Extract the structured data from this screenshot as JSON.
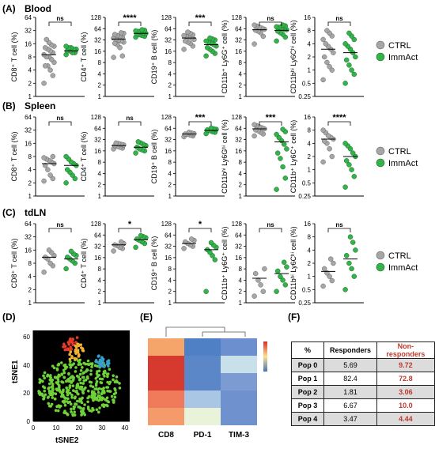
{
  "panel_labels": {
    "A": "(A)",
    "B": "(B)",
    "C": "(C)",
    "D": "(D)",
    "E": "(E)",
    "F": "(F)"
  },
  "row_titles": {
    "A": "Blood",
    "B": "Spleen",
    "C": "tdLN"
  },
  "legend": {
    "ctrl": "CTRL",
    "immact": "ImmAct"
  },
  "colors": {
    "ctrl": "#a6a6a6",
    "immact": "#33b34a",
    "sig_line": "#000000"
  },
  "chart_data": [
    {
      "type": "scatter",
      "row": "Blood",
      "ylabel": "CD8⁺ T cell (%)",
      "ticks": [
        "1",
        "2",
        "4",
        "8",
        "16",
        "32",
        "64"
      ],
      "ylim": [
        1,
        64
      ],
      "sig": "ns",
      "ctrl": {
        "mean": 9,
        "values": [
          2,
          3,
          4,
          5,
          5,
          6,
          7,
          8,
          8,
          9,
          10,
          11,
          12,
          13,
          14,
          15,
          17,
          20
        ]
      },
      "immact": {
        "mean": 11,
        "values": [
          9,
          10,
          10,
          11,
          11,
          12,
          12,
          13,
          13,
          14
        ]
      }
    },
    {
      "type": "scatter",
      "row": "Blood",
      "ylabel": "CD4⁺ T cell (%)",
      "ticks": [
        "1",
        "2",
        "4",
        "8",
        "16",
        "32",
        "64",
        "128"
      ],
      "ylim": [
        1,
        128
      ],
      "sig": "****",
      "ctrl": {
        "mean": 34,
        "values": [
          11,
          12,
          20,
          24,
          26,
          28,
          30,
          32,
          34,
          36,
          38,
          40,
          42,
          45,
          48,
          50
        ]
      },
      "immact": {
        "mean": 48,
        "values": [
          38,
          40,
          42,
          44,
          46,
          48,
          50,
          52,
          54,
          56,
          58,
          60
        ]
      }
    },
    {
      "type": "scatter",
      "row": "Blood",
      "ylabel": "CD19⁺ B cell (%)",
      "ticks": [
        "1",
        "2",
        "4",
        "8",
        "16",
        "32",
        "64",
        "128"
      ],
      "ylim": [
        1,
        128
      ],
      "sig": "***",
      "ctrl": {
        "mean": 36,
        "values": [
          18,
          22,
          26,
          28,
          30,
          33,
          36,
          38,
          40,
          42,
          44,
          48,
          52
        ]
      },
      "immact": {
        "mean": 24,
        "values": [
          12,
          14,
          16,
          18,
          20,
          22,
          24,
          26,
          28,
          30,
          32,
          34,
          36
        ]
      }
    },
    {
      "type": "scatter",
      "row": "Blood",
      "ylabel": "CD11b⁺ Ly6G⁺ cell (%)",
      "ticks": [
        "1",
        "2",
        "4",
        "8",
        "16",
        "32",
        "64",
        "128"
      ],
      "ylim": [
        1,
        128
      ],
      "sig": "ns",
      "ctrl": {
        "mean": 60,
        "values": [
          25,
          40,
          50,
          55,
          58,
          62,
          66,
          70,
          75,
          80
        ]
      },
      "immact": {
        "mean": 58,
        "values": [
          30,
          38,
          45,
          50,
          55,
          60,
          62,
          65,
          70,
          72,
          76,
          80
        ]
      }
    },
    {
      "type": "scatter",
      "row": "Blood",
      "ylabel": "CD11bʰⁱ Ly6Cʰⁱ cell (%)",
      "ticks": [
        "0.25",
        "0.5",
        "1",
        "2",
        "4",
        "8",
        "16"
      ],
      "ylim": [
        0.25,
        16
      ],
      "sig": "ns",
      "ctrl": {
        "mean": 3,
        "values": [
          0.6,
          1,
          1.2,
          1.5,
          2,
          2.5,
          3,
          3.5,
          4,
          5,
          6,
          7,
          8
        ]
      },
      "immact": {
        "mean": 2.5,
        "values": [
          0.5,
          0.8,
          1,
          1.3,
          1.7,
          2,
          2.5,
          3,
          3.5,
          4,
          5,
          6,
          7
        ]
      }
    },
    {
      "type": "scatter",
      "row": "Spleen",
      "ylabel": "CD8⁺ T cell (%)",
      "ticks": [
        "1",
        "2",
        "4",
        "8",
        "16",
        "32",
        "64"
      ],
      "ylim": [
        1,
        64
      ],
      "sig": "ns",
      "ctrl": {
        "mean": 5.5,
        "values": [
          2.2,
          2.5,
          3,
          4,
          5,
          5.5,
          6,
          6.5,
          7,
          7.5,
          8
        ]
      },
      "immact": {
        "mean": 5,
        "values": [
          2,
          2.5,
          3,
          3.5,
          4,
          5,
          5.5,
          6,
          7,
          8
        ]
      }
    },
    {
      "type": "scatter",
      "row": "Spleen",
      "ylabel": "CD4⁺ T cell (%)",
      "ticks": [
        "1",
        "2",
        "4",
        "8",
        "16",
        "32",
        "64",
        "128"
      ],
      "ylim": [
        1,
        128
      ],
      "sig": "ns",
      "ctrl": {
        "mean": 22,
        "values": [
          18,
          19,
          20,
          21,
          22,
          23,
          24,
          25,
          26
        ]
      },
      "immact": {
        "mean": 20,
        "values": [
          14,
          16,
          17,
          18,
          20,
          22,
          24,
          26,
          28
        ]
      }
    },
    {
      "type": "scatter",
      "row": "Spleen",
      "ylabel": "CD19⁺ B cell (%)",
      "ticks": [
        "1",
        "2",
        "4",
        "8",
        "16",
        "32",
        "64",
        "128"
      ],
      "ylim": [
        1,
        128
      ],
      "sig": "***",
      "ctrl": {
        "mean": 45,
        "values": [
          38,
          40,
          42,
          44,
          45,
          46,
          48,
          50
        ]
      },
      "immact": {
        "mean": 56,
        "values": [
          46,
          50,
          52,
          55,
          58,
          60,
          62,
          65
        ]
      }
    },
    {
      "type": "scatter",
      "row": "Spleen",
      "ylabel": "CD11bʰⁱ Ly6Gʰⁱ cell (%)",
      "ticks": [
        "1",
        "2",
        "4",
        "8",
        "16",
        "32",
        "64",
        "128"
      ],
      "ylim": [
        1,
        128
      ],
      "sig": "***",
      "ctrl": {
        "mean": 62,
        "values": [
          40,
          45,
          50,
          55,
          58,
          62,
          66,
          70,
          75,
          80
        ]
      },
      "immact": {
        "mean": 28,
        "values": [
          1.5,
          3,
          6,
          10,
          14,
          18,
          24,
          30,
          36,
          44,
          52,
          60
        ]
      }
    },
    {
      "type": "scatter",
      "row": "Spleen",
      "ylabel": "CD11b⁺ Ly6C⁺ cell (%)",
      "ticks": [
        "0.25",
        "0.5",
        "1",
        "2",
        "4",
        "8",
        "16"
      ],
      "ylim": [
        0.25,
        16
      ],
      "sig": "****",
      "ctrl": {
        "mean": 5,
        "values": [
          1.5,
          2,
          3,
          4,
          4.5,
          5,
          5.5,
          6,
          7,
          8
        ]
      },
      "immact": {
        "mean": 2,
        "values": [
          0.4,
          0.7,
          1,
          1.3,
          1.6,
          2,
          2.4,
          3,
          3.5,
          4
        ]
      }
    },
    {
      "type": "scatter",
      "row": "tdLN",
      "ylabel": "CD8⁺ T cell (%)",
      "ticks": [
        "1",
        "2",
        "4",
        "8",
        "16",
        "32",
        "64"
      ],
      "ylim": [
        1,
        64
      ],
      "sig": "ns",
      "ctrl": {
        "mean": 11,
        "values": [
          5,
          7,
          8,
          10,
          11,
          12,
          14,
          16
        ]
      },
      "immact": {
        "mean": 10,
        "values": [
          6,
          8,
          9,
          10,
          11,
          12,
          13,
          15
        ]
      }
    },
    {
      "type": "scatter",
      "row": "tdLN",
      "ylabel": "CD4⁺ T cell (%)",
      "ticks": [
        "1",
        "2",
        "4",
        "8",
        "16",
        "32",
        "64",
        "128"
      ],
      "ylim": [
        1,
        128
      ],
      "sig": "*",
      "ctrl": {
        "mean": 35,
        "values": [
          24,
          28,
          30,
          33,
          35,
          38,
          42
        ]
      },
      "immact": {
        "mean": 48,
        "values": [
          30,
          38,
          42,
          46,
          50,
          54,
          58,
          62
        ]
      }
    },
    {
      "type": "scatter",
      "row": "tdLN",
      "ylabel": "CD19⁺ B cell (%)",
      "ticks": [
        "1",
        "2",
        "4",
        "8",
        "16",
        "32",
        "64",
        "128"
      ],
      "ylim": [
        1,
        128
      ],
      "sig": "*",
      "ctrl": {
        "mean": 38,
        "values": [
          28,
          32,
          35,
          38,
          42,
          46,
          50
        ]
      },
      "immact": {
        "mean": 26,
        "values": [
          2,
          14,
          18,
          22,
          26,
          30,
          34,
          40
        ]
      }
    },
    {
      "type": "scatter",
      "row": "tdLN",
      "ylabel": "CD11b⁺ Ly6G⁺ cell (%)",
      "ticks": [
        "1",
        "2",
        "4",
        "8",
        "16",
        "32",
        "64",
        "128"
      ],
      "ylim": [
        1,
        128
      ],
      "sig": "ns",
      "ctrl": {
        "mean": 4.5,
        "values": [
          1.5,
          2,
          3,
          4,
          6,
          8
        ]
      },
      "immact": {
        "mean": 6,
        "values": [
          2,
          3,
          4,
          5,
          7,
          9,
          12
        ]
      }
    },
    {
      "type": "scatter",
      "row": "tdLN",
      "ylabel": "CD11bʰⁱ Ly6Cʰⁱ cell (%)",
      "ticks": [
        "0.25",
        "0.5",
        "1",
        "2",
        "4",
        "8",
        "16"
      ],
      "ylim": [
        0.25,
        16
      ],
      "sig": "ns",
      "ctrl": {
        "mean": 1.3,
        "values": [
          0.6,
          0.8,
          1,
          1.2,
          1.5,
          2,
          2.5
        ]
      },
      "immact": {
        "mean": 2.5,
        "values": [
          0.5,
          1,
          1.5,
          2,
          3,
          4,
          6,
          8
        ]
      }
    }
  ],
  "tsne": {
    "xlabel": "tSNE2",
    "ylabel": "tSNE1",
    "xticks": [
      "0",
      "10",
      "20",
      "30",
      "40"
    ],
    "yticks": [
      "0",
      "20",
      "40",
      "60"
    ],
    "xlim": [
      0,
      42
    ],
    "ylim": [
      0,
      65
    ]
  },
  "heatmap": {
    "columns": [
      "CD8",
      "PD-1",
      "TIM-3"
    ],
    "rows": [
      "Pop 0",
      "Pop 1",
      "Pop 2",
      "Pop 3",
      "Pop 4"
    ],
    "colors": [
      [
        "#f5a56a",
        "#4f7fc4",
        "#6b8fcf"
      ],
      [
        "#d63a2e",
        "#5b87c9",
        "#c8e0ea"
      ],
      [
        "#d63a2e",
        "#5b87c9",
        "#7c9bd3"
      ],
      [
        "#ef7b5a",
        "#a9c6e4",
        "#6f92cf"
      ],
      [
        "#f59a6a",
        "#e9f3da",
        "#6f92cf"
      ]
    ],
    "scale_colors": [
      "#d73027",
      "#fee090",
      "#4575b4"
    ]
  },
  "table": {
    "headers": [
      "%",
      "Responders",
      "Non-responders"
    ],
    "rows": [
      [
        "Pop 0",
        "5.69",
        "9.72"
      ],
      [
        "Pop 1",
        "82.4",
        "72.8"
      ],
      [
        "Pop 2",
        "1.81",
        "3.06"
      ],
      [
        "Pop 3",
        "6.67",
        "10.0"
      ],
      [
        "Pop 4",
        "3.47",
        "4.44"
      ]
    ]
  }
}
